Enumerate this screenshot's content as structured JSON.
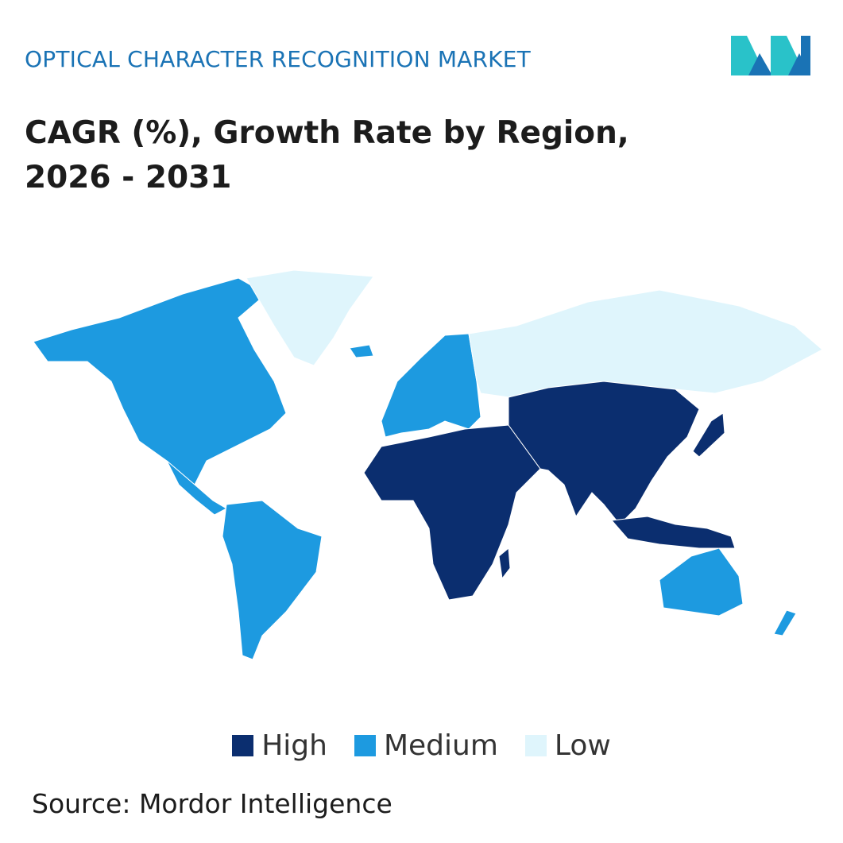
{
  "header": {
    "market_title": "OPTICAL CHARACTER RECOGNITION MARKET",
    "chart_title": "CAGR (%), Growth Rate by Region, 2026 - 2031"
  },
  "colors": {
    "high": "#0b2e6f",
    "medium": "#1d9ae0",
    "low": "#dff5fc",
    "accent": "#1a73b5",
    "logo_teal": "#29c2c9",
    "logo_blue": "#1a73b5"
  },
  "legend": {
    "items": [
      {
        "key": "high",
        "label": "High"
      },
      {
        "key": "medium",
        "label": "Medium"
      },
      {
        "key": "low",
        "label": "Low"
      }
    ]
  },
  "regions": {
    "north_america": "medium",
    "south_america": "medium",
    "europe": "medium",
    "russia": "low",
    "greenland": "low",
    "middle_east_africa": "high",
    "asia_pacific": "high",
    "australia": "medium",
    "new_zealand": "medium"
  },
  "footer": {
    "source": "Source: Mordor Intelligence"
  }
}
